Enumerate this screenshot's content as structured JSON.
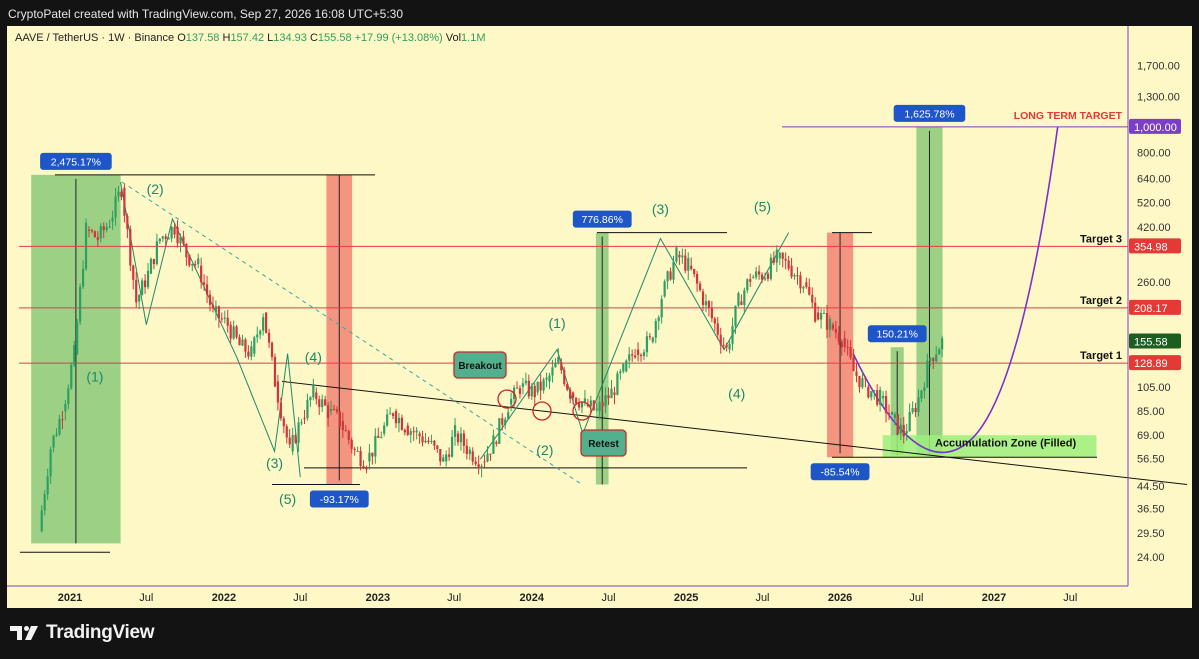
{
  "header": {
    "attribution": "CryptoPatel created with TradingView.com, Sep 27, 2026 16:08 UTC+5:30"
  },
  "footer": {
    "brand": "TradingView"
  },
  "chart_data": {
    "type": "candlestick",
    "symbol": "AAVE / TetherUS · 1W · Binance",
    "ohlc": {
      "open": "137.58",
      "high": "157.42",
      "low": "134.93",
      "close": "155.58",
      "change": "+17.99 (+13.08%)",
      "vol": "1.1M"
    },
    "ohlc_labels": {
      "o": "O",
      "h": "H",
      "l": "L",
      "c": "C",
      "vol": "Vol"
    },
    "y_scale": "log",
    "ylim": [
      20,
      2200
    ],
    "y_ticks": [
      "1,700.00",
      "1,300.00",
      "1,000.00",
      "800.00",
      "640.00",
      "520.00",
      "420.00",
      "354.98",
      "260.00",
      "208.17",
      "155.58",
      "128.89",
      "105.00",
      "85.00",
      "69.00",
      "56.50",
      "44.50",
      "36.50",
      "29.50",
      "24.00"
    ],
    "x_ticks": [
      "2021",
      "Jul",
      "2022",
      "Jul",
      "2023",
      "Jul",
      "2024",
      "Jul",
      "2025",
      "Jul",
      "2026",
      "Jul",
      "2027",
      "Jul"
    ],
    "price_badges": [
      {
        "label": "1,000.00",
        "value": 1000,
        "color": "#7b3fc7"
      },
      {
        "label": "354.98",
        "value": 354.98,
        "color": "#e53935"
      },
      {
        "label": "208.17",
        "value": 208.17,
        "color": "#e53935"
      },
      {
        "label": "155.58",
        "value": 155.58,
        "color": "#1b5e20"
      },
      {
        "label": "128.89",
        "value": 128.89,
        "color": "#e53935"
      }
    ],
    "targets": [
      {
        "name": "Target 3",
        "value": 354.98
      },
      {
        "name": "Target 2",
        "value": 208.17
      },
      {
        "name": "Target 1",
        "value": 128.89
      }
    ],
    "long_term_target": {
      "label": "LONG TERM TARGET",
      "value": 1000
    },
    "measurements": [
      {
        "label": "2,475.17%",
        "from": "2020-10",
        "to": "2021-05",
        "low": 27,
        "high": 660,
        "direction": "up"
      },
      {
        "label": "-93.17%",
        "from": "2022-09",
        "to": "2022-11",
        "low": 45,
        "high": 660,
        "direction": "down"
      },
      {
        "label": "776.86%",
        "from": "2024-06",
        "to": "2024-07",
        "low": 45,
        "high": 400,
        "direction": "up"
      },
      {
        "label": "-85.54%",
        "from": "2025-12",
        "to": "2026-02",
        "low": 57,
        "high": 400,
        "direction": "down"
      },
      {
        "label": "150.21%",
        "from": "2026-05",
        "to": "2026-06",
        "low": 58,
        "high": 148,
        "direction": "up"
      },
      {
        "label": "1,625.78%",
        "from": "2026-07",
        "to": "2026-09",
        "low": 58,
        "high": 1000,
        "direction": "up"
      }
    ],
    "wave_labels": [
      "(2)",
      "(1)",
      "(4)",
      "(3)",
      "(5)",
      "(1)",
      "(2)",
      "(3)",
      "(4)",
      "(5)"
    ],
    "callouts": [
      "Breakout",
      "Retest"
    ],
    "zone_label": "Accumulation Zone (Filled)",
    "ohlc_series_weekly_close": [
      {
        "t": "2020-10-19",
        "c": 30
      },
      {
        "t": "2020-11-16",
        "c": 62
      },
      {
        "t": "2020-12-14",
        "c": 85
      },
      {
        "t": "2021-01-11",
        "c": 140
      },
      {
        "t": "2021-02-08",
        "c": 410
      },
      {
        "t": "2021-03-08",
        "c": 380
      },
      {
        "t": "2021-04-05",
        "c": 440
      },
      {
        "t": "2021-05-03",
        "c": 590
      },
      {
        "t": "2021-06-07",
        "c": 220
      },
      {
        "t": "2021-07-05",
        "c": 280
      },
      {
        "t": "2021-08-02",
        "c": 380
      },
      {
        "t": "2021-09-06",
        "c": 420
      },
      {
        "t": "2021-10-04",
        "c": 330
      },
      {
        "t": "2021-11-01",
        "c": 300
      },
      {
        "t": "2021-12-06",
        "c": 200
      },
      {
        "t": "2022-01-10",
        "c": 180
      },
      {
        "t": "2022-02-07",
        "c": 150
      },
      {
        "t": "2022-03-07",
        "c": 140
      },
      {
        "t": "2022-04-04",
        "c": 200
      },
      {
        "t": "2022-05-02",
        "c": 110
      },
      {
        "t": "2022-06-06",
        "c": 60
      },
      {
        "t": "2022-07-04",
        "c": 80
      },
      {
        "t": "2022-08-01",
        "c": 100
      },
      {
        "t": "2022-09-05",
        "c": 85
      },
      {
        "t": "2022-10-03",
        "c": 78
      },
      {
        "t": "2022-11-07",
        "c": 60
      },
      {
        "t": "2022-12-05",
        "c": 55
      },
      {
        "t": "2023-01-09",
        "c": 70
      },
      {
        "t": "2023-02-06",
        "c": 85
      },
      {
        "t": "2023-03-06",
        "c": 75
      },
      {
        "t": "2023-04-03",
        "c": 70
      },
      {
        "t": "2023-05-01",
        "c": 65
      },
      {
        "t": "2023-06-05",
        "c": 55
      },
      {
        "t": "2023-07-03",
        "c": 70
      },
      {
        "t": "2023-08-07",
        "c": 60
      },
      {
        "t": "2023-09-04",
        "c": 55
      },
      {
        "t": "2023-10-02",
        "c": 65
      },
      {
        "t": "2023-11-06",
        "c": 90
      },
      {
        "t": "2023-12-04",
        "c": 105
      },
      {
        "t": "2024-01-08",
        "c": 100
      },
      {
        "t": "2024-02-05",
        "c": 110
      },
      {
        "t": "2024-03-04",
        "c": 130
      },
      {
        "t": "2024-04-01",
        "c": 100
      },
      {
        "t": "2024-05-06",
        "c": 90
      },
      {
        "t": "2024-06-03",
        "c": 85
      },
      {
        "t": "2024-07-08",
        "c": 100
      },
      {
        "t": "2024-08-05",
        "c": 120
      },
      {
        "t": "2024-09-02",
        "c": 145
      },
      {
        "t": "2024-10-07",
        "c": 155
      },
      {
        "t": "2024-11-04",
        "c": 230
      },
      {
        "t": "2024-12-09",
        "c": 330
      },
      {
        "t": "2025-01-06",
        "c": 300
      },
      {
        "t": "2025-02-03",
        "c": 240
      },
      {
        "t": "2025-03-03",
        "c": 190
      },
      {
        "t": "2025-04-07",
        "c": 145
      },
      {
        "t": "2025-05-05",
        "c": 220
      },
      {
        "t": "2025-06-02",
        "c": 270
      },
      {
        "t": "2025-07-07",
        "c": 280
      },
      {
        "t": "2025-08-04",
        "c": 320
      },
      {
        "t": "2025-09-01",
        "c": 300
      },
      {
        "t": "2025-10-06",
        "c": 260
      },
      {
        "t": "2025-11-03",
        "c": 200
      },
      {
        "t": "2025-12-08",
        "c": 180
      },
      {
        "t": "2026-01-05",
        "c": 160
      },
      {
        "t": "2026-02-02",
        "c": 120
      },
      {
        "t": "2026-03-02",
        "c": 105
      },
      {
        "t": "2026-04-06",
        "c": 95
      },
      {
        "t": "2026-05-04",
        "c": 80
      },
      {
        "t": "2026-06-01",
        "c": 70
      },
      {
        "t": "2026-07-06",
        "c": 95
      },
      {
        "t": "2026-08-03",
        "c": 135
      },
      {
        "t": "2026-08-31",
        "c": 155.58
      }
    ]
  }
}
